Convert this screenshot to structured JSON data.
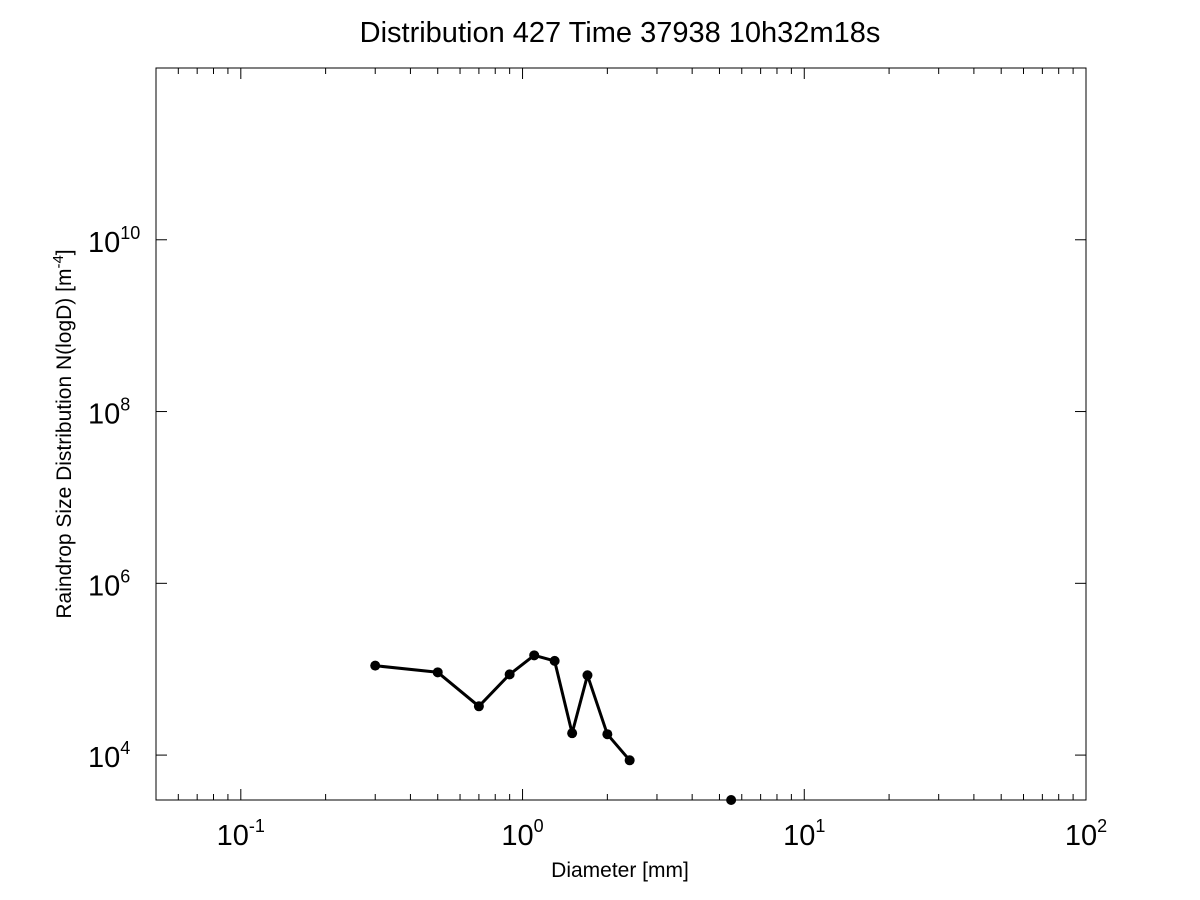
{
  "chart_data": {
    "type": "line",
    "title": "Distribution 427 Time 37938 10h32m18s",
    "xlabel": "Diameter [mm]",
    "ylabel": {
      "text": "Raindrop Size Distribution N(logD) [m",
      "sup": "-4",
      "suffix": "]"
    },
    "x_scale": "log",
    "y_scale": "log",
    "xlim": [
      0.05,
      100
    ],
    "ylim": [
      3000,
      1000000000000
    ],
    "x_ticks": [
      {
        "value": 0.1,
        "base": "10",
        "exp": "-1"
      },
      {
        "value": 1,
        "base": "10",
        "exp": "0"
      },
      {
        "value": 10,
        "base": "10",
        "exp": "1"
      },
      {
        "value": 100,
        "base": "10",
        "exp": "2"
      }
    ],
    "y_ticks": [
      {
        "value": 10000,
        "base": "10",
        "exp": "4"
      },
      {
        "value": 1000000,
        "base": "10",
        "exp": "6"
      },
      {
        "value": 100000000,
        "base": "10",
        "exp": "8"
      },
      {
        "value": 10000000000,
        "base": "10",
        "exp": "10"
      }
    ],
    "grid": false,
    "series": [
      {
        "x": [
          0.3,
          0.5,
          0.7,
          0.9,
          1.1,
          1.3,
          1.5,
          1.7,
          2.0,
          2.4
        ],
        "y": [
          110000,
          92000,
          37000,
          87000,
          145000,
          125000,
          18000,
          85000,
          17500,
          8700
        ],
        "color": "#000000",
        "marker": "circle"
      },
      {
        "x": [
          5.5
        ],
        "y": [
          3000
        ],
        "color": "#000000",
        "marker": "circle",
        "line": false
      }
    ]
  }
}
